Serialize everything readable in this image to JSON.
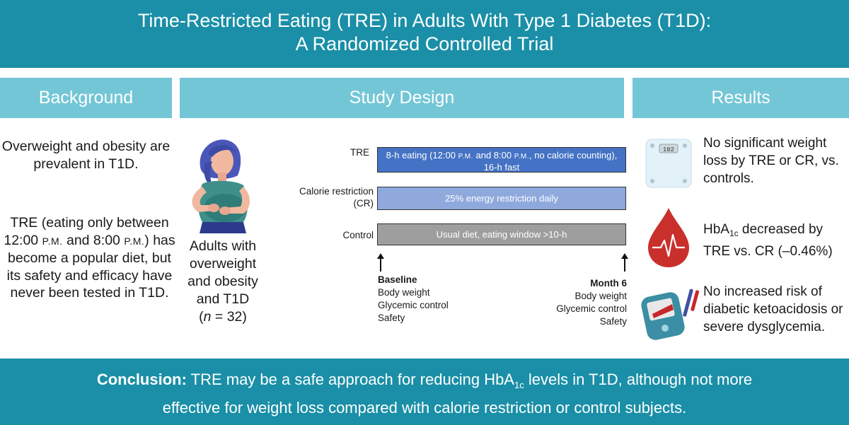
{
  "title": {
    "line1": "Time-Restricted Eating (TRE) in Adults With Type 1 Diabetes (T1D):",
    "line2": "A Randomized Controlled Trial"
  },
  "sections": {
    "background": "Background",
    "study_design": "Study Design",
    "results": "Results"
  },
  "background": {
    "p1": "Overweight and obesity are prevalent in T1D.",
    "p2_before_time1": "TRE (eating only between 12:00",
    "pm": "P.M.",
    "p2_and": "and 8:00",
    "p2_after": ") has become a popular diet, but its safety and efficacy have never been tested in T1D."
  },
  "population": {
    "text": "Adults with overweight and obesity and T1D",
    "n_open": "(",
    "n_var": "n",
    "n_value": " = 32)"
  },
  "design": {
    "arms": [
      {
        "label": "TRE",
        "bar_part1": "8-h eating (12:00",
        "bar_pm": "P.M.",
        "bar_part2": "and 8:00",
        "bar_part3": ", no calorie counting),",
        "bar_line2": "16-h fast"
      },
      {
        "label_line1": "Calorie restriction",
        "label_line2": "(CR)",
        "bar": "25% energy restriction daily"
      },
      {
        "label": "Control",
        "bar": "Usual diet, eating window >10-h"
      }
    ],
    "baseline": {
      "title": "Baseline",
      "items": [
        "Body weight",
        "Glycemic control",
        "Safety"
      ]
    },
    "month6": {
      "title": "Month 6",
      "items": [
        "Body weight",
        "Glycemic control",
        "Safety"
      ]
    }
  },
  "results": {
    "r1": "No significant weight loss by TRE or CR, vs. controls.",
    "r2_prefix": "HbA",
    "r2_sub": "1c",
    "r2_rest": " decreased by",
    "r2_line2": "TRE vs. CR (–0.46%)",
    "r3": "No increased risk of diabetic ketoacidosis or severe dysglycemia.",
    "scale_display": "102"
  },
  "conclusion": {
    "label": "Conclusion:",
    "text_before": " TRE may be a safe approach for reducing HbA",
    "sub": "1c",
    "text_after": " levels in T1D, although not more",
    "line2": "effective for weight loss compared with calorie restriction or control subjects."
  },
  "colors": {
    "title_bar": "#1a8fa7",
    "section_head": "#73c6d6",
    "tre_bar": "#4472c4",
    "cr_bar": "#8fa9dd",
    "control_bar": "#9e9e9e",
    "blood_drop": "#c9302c"
  },
  "icons": {
    "woman": "woman-with-belly-icon",
    "scale": "bathroom-scale-icon",
    "drop": "blood-drop-heartbeat-icon",
    "glucometer": "glucometer-icon"
  }
}
